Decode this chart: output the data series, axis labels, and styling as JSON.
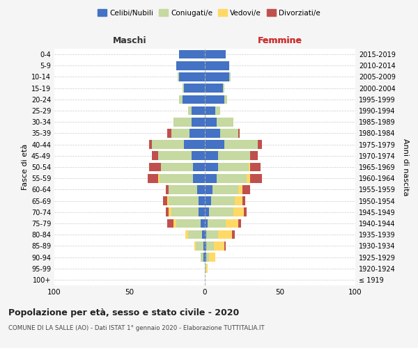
{
  "age_groups": [
    "100+",
    "95-99",
    "90-94",
    "85-89",
    "80-84",
    "75-79",
    "70-74",
    "65-69",
    "60-64",
    "55-59",
    "50-54",
    "45-49",
    "40-44",
    "35-39",
    "30-34",
    "25-29",
    "20-24",
    "15-19",
    "10-14",
    "5-9",
    "0-4"
  ],
  "birth_years": [
    "≤ 1919",
    "1920-1924",
    "1925-1929",
    "1930-1934",
    "1935-1939",
    "1940-1944",
    "1945-1949",
    "1950-1954",
    "1955-1959",
    "1960-1964",
    "1965-1969",
    "1970-1974",
    "1975-1979",
    "1980-1984",
    "1985-1989",
    "1990-1994",
    "1995-1999",
    "2000-2004",
    "2005-2009",
    "2010-2014",
    "2015-2019"
  ],
  "male": {
    "celibi": [
      0,
      0,
      1,
      1,
      2,
      3,
      4,
      4,
      5,
      8,
      8,
      9,
      14,
      10,
      9,
      9,
      15,
      14,
      17,
      19,
      17
    ],
    "coniugati": [
      0,
      0,
      2,
      5,
      9,
      16,
      18,
      20,
      19,
      22,
      21,
      22,
      21,
      12,
      12,
      2,
      2,
      1,
      1,
      0,
      0
    ],
    "vedovi": [
      0,
      0,
      0,
      1,
      2,
      2,
      2,
      1,
      0,
      1,
      0,
      0,
      0,
      0,
      0,
      0,
      0,
      0,
      0,
      0,
      0
    ],
    "divorziati": [
      0,
      0,
      0,
      0,
      0,
      4,
      2,
      3,
      2,
      7,
      8,
      4,
      2,
      3,
      0,
      0,
      0,
      0,
      0,
      0,
      0
    ]
  },
  "female": {
    "nubili": [
      0,
      0,
      1,
      1,
      1,
      2,
      3,
      4,
      5,
      8,
      9,
      9,
      13,
      10,
      8,
      7,
      13,
      12,
      16,
      16,
      14
    ],
    "coniugate": [
      0,
      1,
      2,
      5,
      8,
      12,
      16,
      16,
      17,
      20,
      20,
      21,
      22,
      12,
      11,
      3,
      2,
      1,
      1,
      0,
      0
    ],
    "vedove": [
      0,
      1,
      4,
      7,
      9,
      8,
      7,
      5,
      3,
      2,
      1,
      0,
      0,
      0,
      0,
      0,
      0,
      0,
      0,
      0,
      0
    ],
    "divorziate": [
      0,
      0,
      0,
      1,
      2,
      2,
      2,
      2,
      5,
      8,
      7,
      5,
      3,
      1,
      0,
      0,
      0,
      0,
      0,
      0,
      0
    ]
  },
  "colors": {
    "celibi": "#4472C4",
    "coniugati": "#c5d9a0",
    "vedovi": "#FFD966",
    "divorziati": "#C0504D"
  },
  "xlim": 100,
  "title": "Popolazione per età, sesso e stato civile - 2020",
  "subtitle": "COMUNE DI LA SALLE (AO) - Dati ISTAT 1° gennaio 2020 - Elaborazione TUTTITALIA.IT",
  "ylabel_left": "Fasce di età",
  "ylabel_right": "Anni di nascita",
  "xlabel_left": "Maschi",
  "xlabel_right": "Femmine",
  "legend_labels": [
    "Celibi/Nubili",
    "Coniugati/e",
    "Vedovi/e",
    "Divorziati/e"
  ],
  "bg_color": "#f5f5f5",
  "plot_bg": "#ffffff"
}
